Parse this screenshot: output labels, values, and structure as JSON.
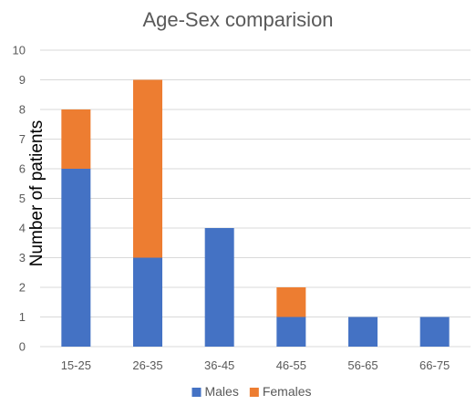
{
  "chart_data": {
    "type": "bar",
    "stacked": true,
    "title": "Age-Sex comparision",
    "xlabel": "",
    "ylabel": "Number of patients",
    "categories": [
      "15-25",
      "26-35",
      "36-45",
      "46-55",
      "56-65",
      "66-75"
    ],
    "series": [
      {
        "name": "Males",
        "values": [
          6,
          3,
          4,
          1,
          1,
          1
        ],
        "color": "#4472C4"
      },
      {
        "name": "Females",
        "values": [
          2,
          6,
          0,
          1,
          0,
          0
        ],
        "color": "#ED7D31"
      }
    ],
    "ylim": [
      0,
      10
    ],
    "yticks": [
      "0",
      "1",
      "2",
      "3",
      "4",
      "5",
      "6",
      "7",
      "8",
      "9",
      "10"
    ],
    "grid": true,
    "legend_position": "bottom"
  }
}
